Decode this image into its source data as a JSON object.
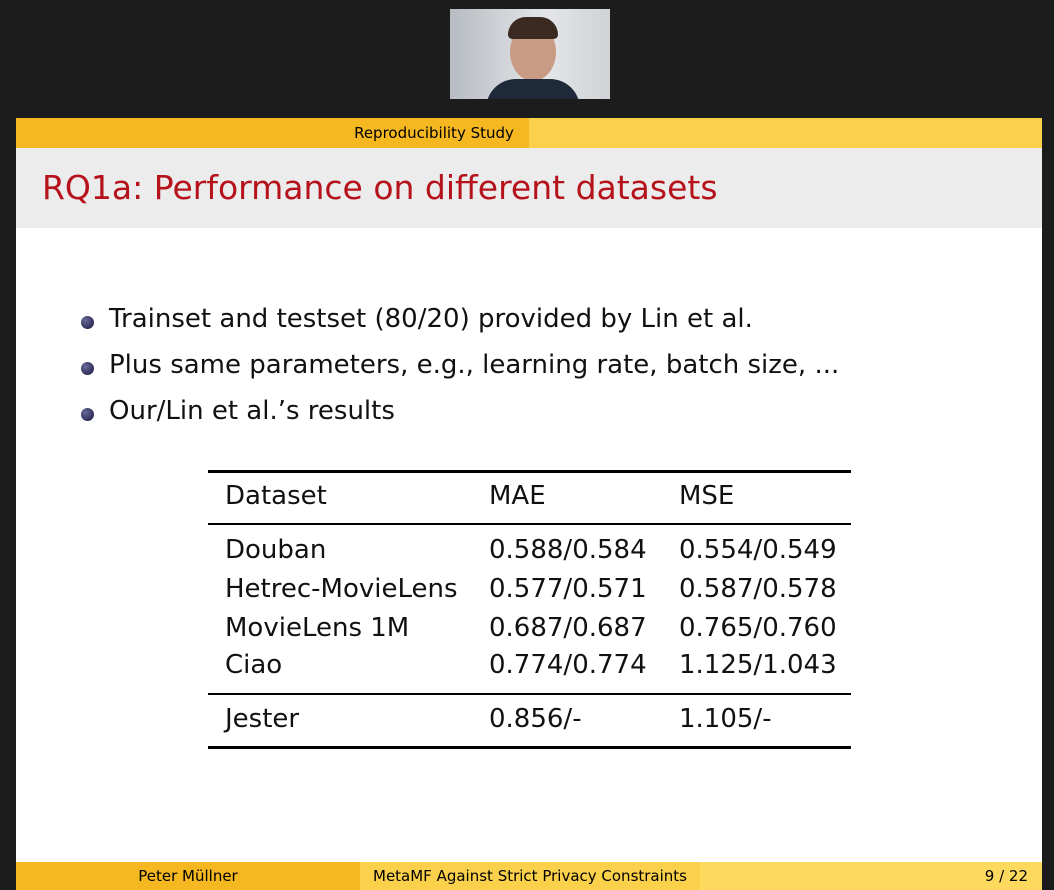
{
  "header": {
    "section": "Reproducibility Study"
  },
  "title": "RQ1a: Performance on different datasets",
  "bullets": [
    "Trainset and testset (80/20) provided by Lin et al.",
    "Plus same parameters, e.g., learning rate, batch size, ...",
    "Our/Lin et al.’s results"
  ],
  "table": {
    "columns": [
      "Dataset",
      "MAE",
      "MSE"
    ],
    "rows": [
      [
        "Douban",
        "0.588/0.584",
        "0.554/0.549"
      ],
      [
        "Hetrec-MovieLens",
        "0.577/0.571",
        "0.587/0.578"
      ],
      [
        "MovieLens 1M",
        "0.687/0.687",
        "0.765/0.760"
      ],
      [
        "Ciao",
        "0.774/0.774",
        "1.125/1.043"
      ],
      [
        "Jester",
        "0.856/-",
        "1.105/-"
      ]
    ]
  },
  "footer": {
    "author": "Peter Müllner",
    "talk": "MetaMF Against Strict Privacy Constraints",
    "page": "9 / 22"
  }
}
